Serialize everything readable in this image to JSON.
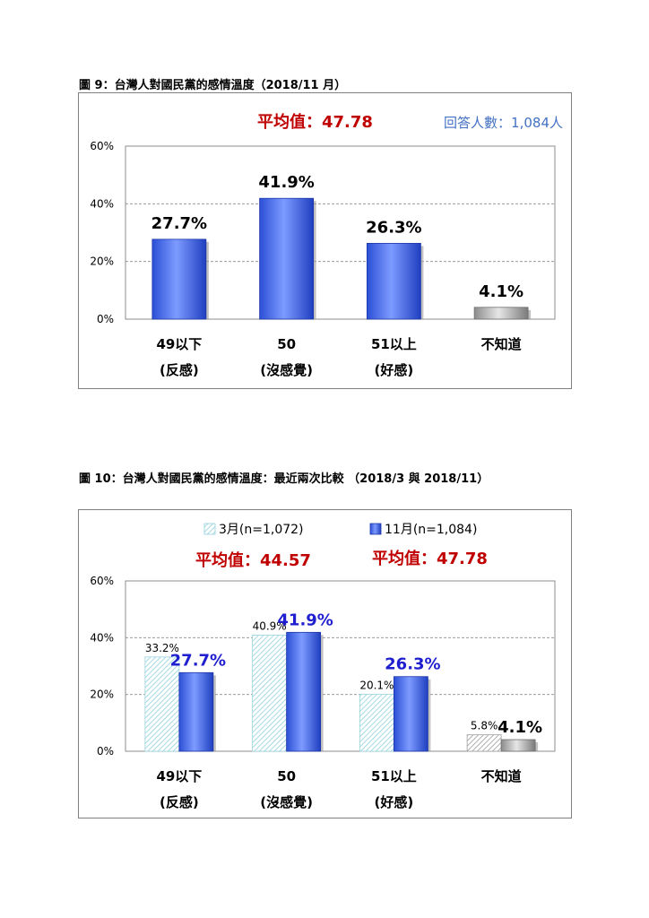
{
  "chart_data": [
    {
      "type": "bar",
      "caption": "圖 9：台灣人對國民黨的感情溫度（2018/11 月）",
      "mean_label": "平均值：47.78",
      "respondents_label": "回答人數：1,084人",
      "categories": [
        [
          "49以下",
          "(反感)"
        ],
        [
          "50",
          "(沒感覺)"
        ],
        [
          "51以上",
          "(好感)"
        ],
        [
          "不知道",
          ""
        ]
      ],
      "yticks": [
        "60%",
        "40%",
        "20%",
        "0%"
      ],
      "ylim": [
        0,
        60
      ],
      "grid": true,
      "series": [
        {
          "values": [
            27.7,
            41.9,
            26.3,
            4.1
          ],
          "labels": [
            "27.7%",
            "41.9%",
            "26.3%",
            "4.1%"
          ]
        }
      ],
      "colors": {
        "bar": "#4169e1",
        "unknown": "#b0b0b0",
        "mean": "#c00000",
        "respondents": "#4472c4"
      }
    },
    {
      "type": "bar",
      "caption": "圖 10：台灣人對國民黨的感情溫度：最近兩次比較 （2018/3 與 2018/11）",
      "categories": [
        [
          "49以下",
          "(反感)"
        ],
        [
          "50",
          "(沒感覺)"
        ],
        [
          "51以上",
          "(好感)"
        ],
        [
          "不知道",
          ""
        ]
      ],
      "yticks": [
        "60%",
        "40%",
        "20%",
        "0%"
      ],
      "ylim": [
        0,
        60
      ],
      "grid": true,
      "legend_position": "top",
      "series": [
        {
          "name": "3月(n=1,072)",
          "mean_label": "平均值：44.57",
          "values": [
            33.2,
            40.9,
            20.1,
            5.8
          ],
          "labels": [
            "33.2%",
            "40.9%",
            "20.1%",
            "5.8%"
          ]
        },
        {
          "name": "11月(n=1,084)",
          "mean_label": "平均值：47.78",
          "values": [
            27.7,
            41.9,
            26.3,
            4.1
          ],
          "labels": [
            "27.7%",
            "41.9%",
            "26.3%",
            "4.1%"
          ]
        }
      ],
      "colors": {
        "bar": "#4169e1",
        "hatch": "#8fd0dc",
        "unknown": "#b0b0b0",
        "mean": "#c00000",
        "value_label": "#1f1fd0"
      }
    }
  ]
}
